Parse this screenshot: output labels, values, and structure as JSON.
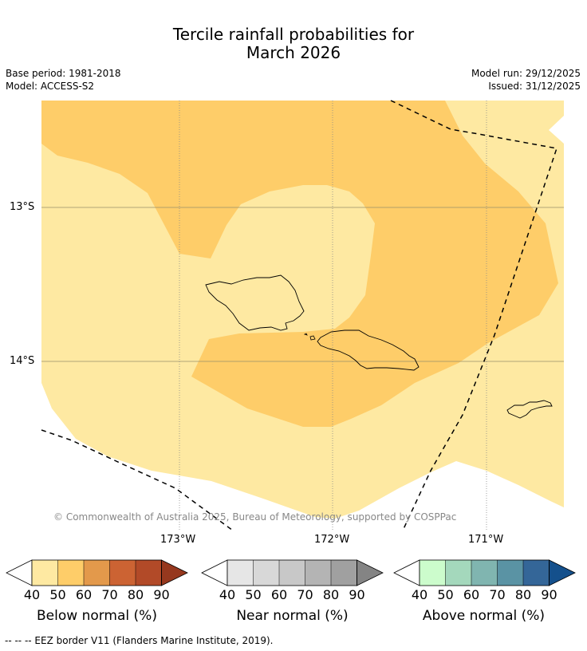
{
  "title": {
    "line1": "Tercile rainfall probabilities for",
    "line2": "March 2026"
  },
  "meta": {
    "base_period": "Base period: 1981-2018",
    "model": "Model: ACCESS-S2",
    "model_run": "Model run: 29/12/2025",
    "issued": "Issued: 31/12/2025"
  },
  "map": {
    "lat_labels": [
      "13°S",
      "14°S"
    ],
    "lon_labels": [
      "173°W",
      "172°W",
      "171°W"
    ],
    "copyright": "© Commonwealth of Australia 2025, Bureau of Meteorology, supported by COSPPac"
  },
  "colors": {
    "below_40": "#fee9a2",
    "below_50": "#fecd69",
    "below_60": "#e3994b",
    "below_70": "#cc6333",
    "below_80": "#b24a28",
    "below_90": "#96381e",
    "near": [
      "#e6e6e6",
      "#d8d8d8",
      "#c8c8c8",
      "#b4b4b4",
      "#a0a0a0",
      "#848484"
    ],
    "above": [
      "#ccfccc",
      "#a4d8bc",
      "#80b5b0",
      "#5a93a4",
      "#346698",
      "#14508c"
    ]
  },
  "legends": [
    {
      "title": "Below normal (%)",
      "ticks": [
        "40",
        "50",
        "60",
        "70",
        "80",
        "90"
      ]
    },
    {
      "title": "Near normal (%)",
      "ticks": [
        "40",
        "50",
        "60",
        "70",
        "80",
        "90"
      ]
    },
    {
      "title": "Above normal (%)",
      "ticks": [
        "40",
        "50",
        "60",
        "70",
        "80",
        "90"
      ]
    }
  ],
  "footer": "--  --  -- EEZ border V11 (Flanders Marine Institute, 2019)."
}
